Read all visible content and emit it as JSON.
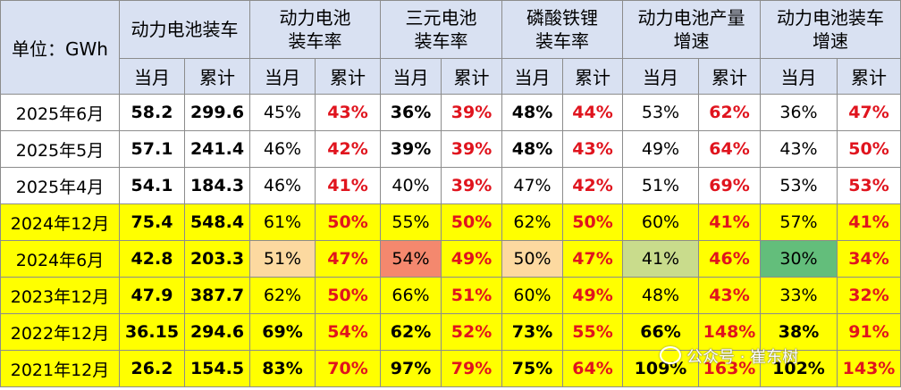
{
  "header": {
    "unit_label": "单位：GWh",
    "groups": [
      "动力电池装车",
      "动力电池装车率",
      "三元电池装车率",
      "磷酸铁锂装车率",
      "动力电池产量增速",
      "动力电池装车增速"
    ],
    "groups_lines": [
      [
        "动力电池装车"
      ],
      [
        "动力电池",
        "装车率"
      ],
      [
        "三元电池",
        "装车率"
      ],
      [
        "磷酸铁锂",
        "装车率"
      ],
      [
        "动力电池产量",
        "增速"
      ],
      [
        "动力电池装车",
        "增速"
      ]
    ],
    "sub_month": "当月",
    "sub_cum": "累计"
  },
  "rows": [
    {
      "label": "2025年6月",
      "cells": [
        "58.2",
        "299.6",
        "45%",
        "43%",
        "36%",
        "39%",
        "48%",
        "44%",
        "53%",
        "62%",
        "36%",
        "47%"
      ]
    },
    {
      "label": "2025年5月",
      "cells": [
        "57.1",
        "241.4",
        "46%",
        "42%",
        "39%",
        "39%",
        "48%",
        "43%",
        "49%",
        "64%",
        "43%",
        "50%"
      ]
    },
    {
      "label": "2025年4月",
      "cells": [
        "54.1",
        "184.3",
        "46%",
        "41%",
        "40%",
        "39%",
        "47%",
        "42%",
        "51%",
        "69%",
        "53%",
        "53%"
      ]
    },
    {
      "label": "2024年12月",
      "cells": [
        "75.4",
        "548.4",
        "61%",
        "50%",
        "55%",
        "50%",
        "62%",
        "50%",
        "60%",
        "41%",
        "57%",
        "41%"
      ]
    },
    {
      "label": "2024年6月",
      "cells": [
        "42.8",
        "203.3",
        "51%",
        "47%",
        "54%",
        "49%",
        "50%",
        "47%",
        "41%",
        "46%",
        "30%",
        "34%"
      ]
    },
    {
      "label": "2023年12月",
      "cells": [
        "47.9",
        "387.7",
        "62%",
        "50%",
        "66%",
        "51%",
        "60%",
        "49%",
        "48%",
        "43%",
        "33%",
        "32%"
      ]
    },
    {
      "label": "2022年12月",
      "cells": [
        "36.15",
        "294.6",
        "69%",
        "54%",
        "62%",
        "52%",
        "73%",
        "55%",
        "66%",
        "148%",
        "38%",
        "91%"
      ]
    },
    {
      "label": "2021年12月",
      "cells": [
        "26.2",
        "154.5",
        "83%",
        "70%",
        "97%",
        "79%",
        "75%",
        "64%",
        "109%",
        "163%",
        "102%",
        "143%"
      ]
    }
  ],
  "colors": {
    "header_bg": "#d9e1f2",
    "highlight_yellow": "#ffff00",
    "cum_red": "#e0141e",
    "heat_orange_light": "#fcd9a0",
    "heat_salmon": "#f4886e",
    "heat_peach": "#fdd9a0",
    "heat_olive_light": "#c9dc8c",
    "heat_green": "#63be7b"
  },
  "watermark": {
    "text": "公众号 · 崔东树",
    "icon": "wechat-icon"
  }
}
